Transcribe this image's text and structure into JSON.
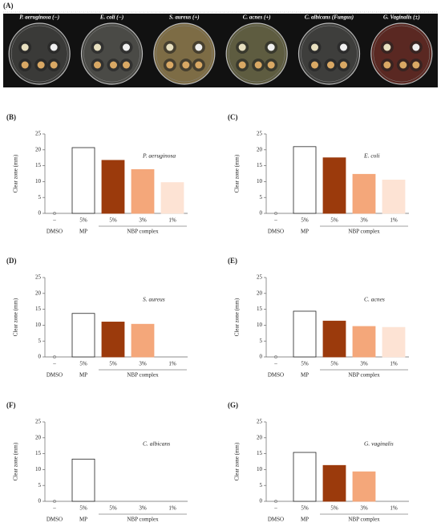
{
  "panel_a": {
    "label": "(A)",
    "plates": [
      "P. aeruginosa (−)",
      "E. coli (−)",
      "S. aureus (+)",
      "C. acnes (+)",
      "C. albicans (Fungus)",
      "G. Vaginalis (±)"
    ]
  },
  "chart_data": [
    {
      "type": "bar",
      "label": "(B)",
      "title": "P. aeruginosa",
      "ylabel": "Clear zone (mm)",
      "categories": [
        "–",
        "5%",
        "5%",
        "3%",
        "1%"
      ],
      "category_groups": [
        "DMSO",
        "MP",
        "NBP complex"
      ],
      "values": [
        0,
        20.7,
        16.7,
        13.8,
        9.7
      ],
      "colors": [
        "#ffffff",
        "#ffffff",
        "#9b3a0c",
        "#f4a77a",
        "#fde3d4"
      ],
      "ylim": [
        0,
        25
      ],
      "yticks": [
        0,
        5,
        10,
        15,
        20,
        25
      ]
    },
    {
      "type": "bar",
      "label": "(C)",
      "title": "E. coli",
      "ylabel": "Clear zone (mm)",
      "categories": [
        "–",
        "5%",
        "5%",
        "3%",
        "1%"
      ],
      "category_groups": [
        "DMSO",
        "MP",
        "NBP complex"
      ],
      "values": [
        0,
        21,
        17.5,
        12.3,
        10.5
      ],
      "colors": [
        "#ffffff",
        "#ffffff",
        "#9b3a0c",
        "#f4a77a",
        "#fde3d4"
      ],
      "ylim": [
        0,
        25
      ],
      "yticks": [
        0,
        5,
        10,
        15,
        20,
        25
      ]
    },
    {
      "type": "bar",
      "label": "(D)",
      "title": "S. aureus",
      "ylabel": "Clear zone (mm)",
      "categories": [
        "–",
        "5%",
        "5%",
        "3%",
        "1%"
      ],
      "category_groups": [
        "DMSO",
        "MP",
        "NBP complex"
      ],
      "values": [
        0,
        13.7,
        11,
        10.3,
        0
      ],
      "colors": [
        "#ffffff",
        "#ffffff",
        "#9b3a0c",
        "#f4a77a",
        "#fde3d4"
      ],
      "ylim": [
        0,
        25
      ],
      "yticks": [
        0,
        5,
        10,
        15,
        20,
        25
      ]
    },
    {
      "type": "bar",
      "label": "(E)",
      "title": "C. acnes",
      "ylabel": "Clear zone (mm)",
      "categories": [
        "–",
        "5%",
        "5%",
        "3%",
        "1%"
      ],
      "category_groups": [
        "DMSO",
        "MP",
        "NBP complex"
      ],
      "values": [
        0,
        14.4,
        11.3,
        9.6,
        9.3
      ],
      "colors": [
        "#ffffff",
        "#ffffff",
        "#9b3a0c",
        "#f4a77a",
        "#fde3d4"
      ],
      "ylim": [
        0,
        25
      ],
      "yticks": [
        0,
        5,
        10,
        15,
        20,
        25
      ]
    },
    {
      "type": "bar",
      "label": "(F)",
      "title": "C. albicans",
      "ylabel": "Clear zone (mm)",
      "categories": [
        "–",
        "5%",
        "5%",
        "3%",
        "1%"
      ],
      "category_groups": [
        "DMSO",
        "MP",
        "NBP complex"
      ],
      "values": [
        0,
        13.3,
        0,
        0,
        0
      ],
      "colors": [
        "#ffffff",
        "#ffffff",
        "#9b3a0c",
        "#f4a77a",
        "#fde3d4"
      ],
      "ylim": [
        0,
        25
      ],
      "yticks": [
        0,
        5,
        10,
        15,
        20,
        25
      ]
    },
    {
      "type": "bar",
      "label": "(G)",
      "title": "G. vaginalis",
      "ylabel": "Clear zone (mm)",
      "categories": [
        "–",
        "5%",
        "5%",
        "3%",
        "1%"
      ],
      "category_groups": [
        "DMSO",
        "MP",
        "NBP complex"
      ],
      "values": [
        0,
        15.4,
        11.3,
        9.3,
        0
      ],
      "colors": [
        "#ffffff",
        "#ffffff",
        "#9b3a0c",
        "#f4a77a",
        "#fde3d4"
      ],
      "ylim": [
        0,
        25
      ],
      "yticks": [
        0,
        5,
        10,
        15,
        20,
        25
      ]
    }
  ]
}
